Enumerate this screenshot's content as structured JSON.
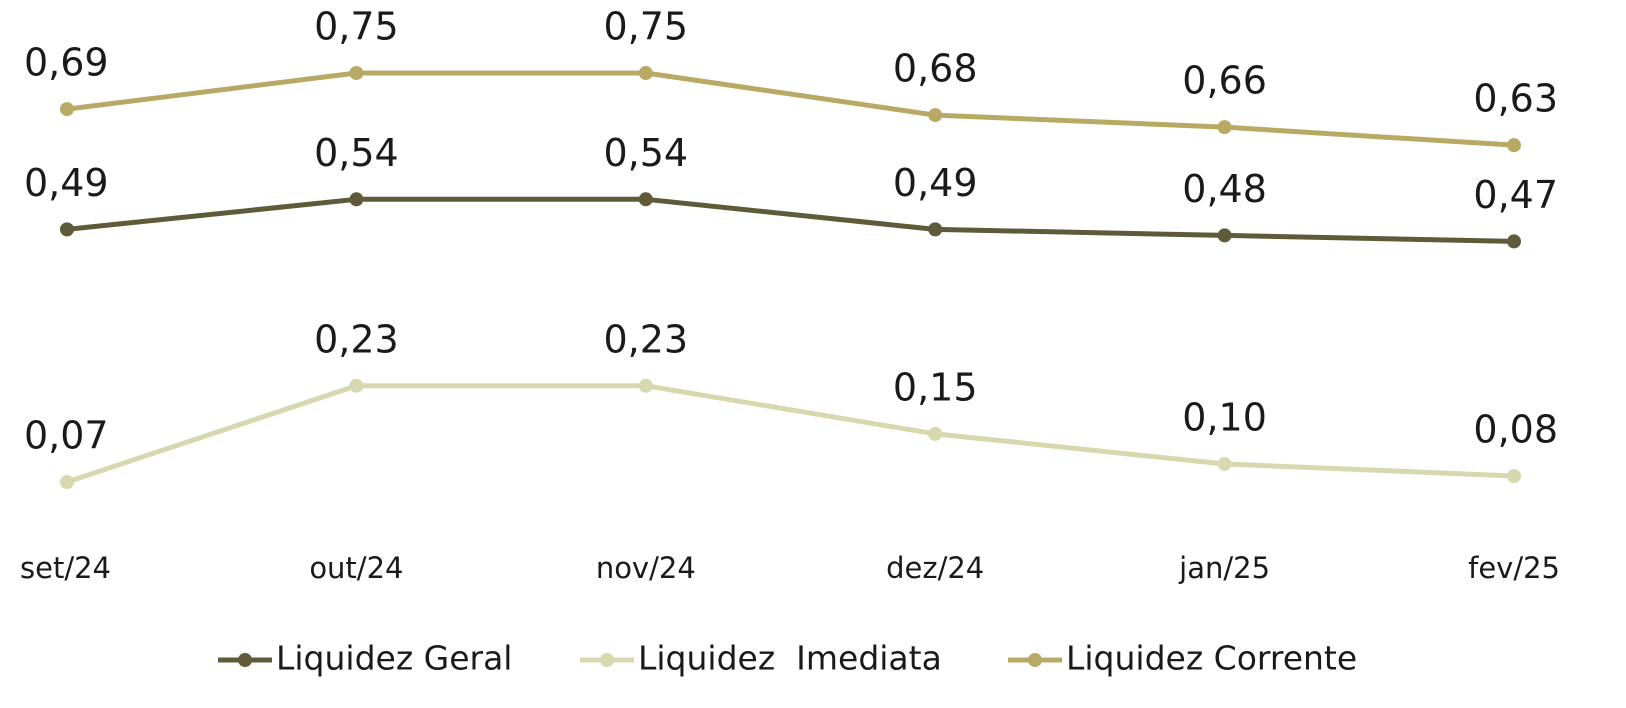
{
  "chart_data": {
    "type": "line",
    "categories": [
      "set/24",
      "out/24",
      "nov/24",
      "dez/24",
      "jan/25",
      "fev/25"
    ],
    "series": [
      {
        "name": "Liquidez Geral",
        "color": "#5e5a3a",
        "values": [
          0.49,
          0.54,
          0.54,
          0.49,
          0.48,
          0.47
        ],
        "value_labels": [
          "0,49",
          "0,54",
          "0,54",
          "0,49",
          "0,48",
          "0,47"
        ]
      },
      {
        "name": "Liquidez  Imediata",
        "color": "#d8d8b0",
        "values": [
          0.07,
          0.23,
          0.23,
          0.15,
          0.1,
          0.08
        ],
        "value_labels": [
          "0,07",
          "0,23",
          "0,23",
          "0,15",
          "0,10",
          "0,08"
        ]
      },
      {
        "name": "Liquidez Corrente",
        "color": "#b8aa65",
        "values": [
          0.69,
          0.75,
          0.75,
          0.68,
          0.66,
          0.63
        ],
        "value_labels": [
          "0,69",
          "0,75",
          "0,75",
          "0,68",
          "0,66",
          "0,63"
        ]
      }
    ],
    "legend": "bottom"
  }
}
